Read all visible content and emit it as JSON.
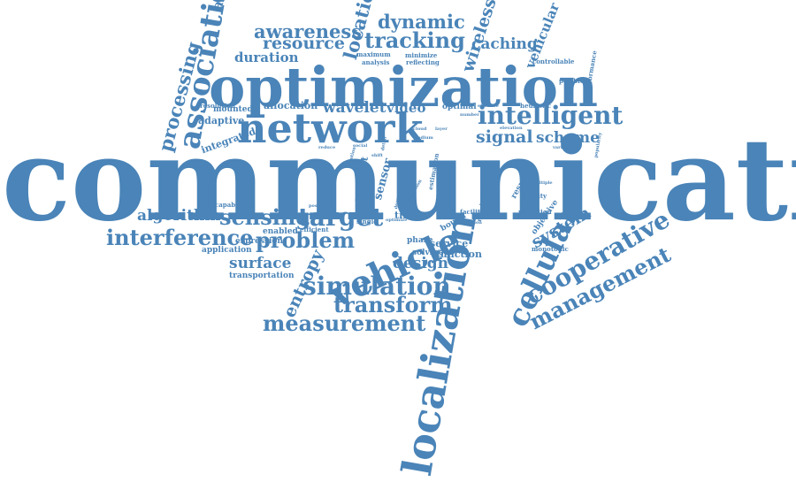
{
  "accent_color": "#4a84b8",
  "words": {
    "communication": "communication",
    "optimization": "optimization",
    "localization": "localization",
    "network": "network",
    "vehicle": "vehicle",
    "intelligent": "intelligent",
    "association": "association",
    "cellular": "cellular",
    "simulation": "simulation",
    "measurement": "measurement",
    "transform": "transform",
    "cooperative": "cooperative",
    "management": "management",
    "target": "target",
    "interference": "interference",
    "sensing": "sensing",
    "problem": "problem",
    "tracking": "tracking",
    "awareness": "awareness",
    "resource": "resource",
    "dynamic": "dynamic",
    "location": "location",
    "wireless": "wireless",
    "caching": "caching",
    "vehicular": "vehicular",
    "processing": "processing",
    "signal": "signal",
    "scheme": "scheme",
    "system": "system",
    "algorithm": "algorithm",
    "surface": "surface",
    "design": "design",
    "entropy": "entropy",
    "wavelet": "wavelet",
    "video": "video",
    "duration": "duration",
    "sensor": "sensor",
    "segment": "segment",
    "time": "time",
    "service": "service",
    "function": "function",
    "solving": "solving",
    "phase": "phase",
    "bound": "bound",
    "application": "application",
    "expression": "expression",
    "enabled": "enabled",
    "efficient": "efficient",
    "transportation": "transportation",
    "capabilities": "capabilities",
    "position": "position",
    "action": "action",
    "single": "single",
    "adaptive": "adaptive",
    "integrated": "integrated",
    "mounted": "mounted",
    "resolution": "resolution",
    "allocation": "allocation",
    "optimal": "optimal",
    "effective": "effective",
    "heuristic": "heuristic",
    "polyblock": "polyblock",
    "performance": "performance",
    "controllable": "controllable",
    "maximum": "maximum",
    "minimize": "minimize",
    "analysis": "analysis",
    "reflecting": "reflecting",
    "elevation": "elevation",
    "cloud": "cloud",
    "number": "number",
    "variable": "variable",
    "popularity": "popularity",
    "requirement": "requirement",
    "estimation": "estimation",
    "result": "result",
    "velocity": "velocity",
    "multiple": "multiple",
    "objective": "objective",
    "reflection": "reflection",
    "monotonic": "monotonic",
    "facilitate": "facilitate",
    "solution": "solution",
    "reduce": "reduce",
    "social": "social",
    "motion": "motion",
    "shift": "shift",
    "detail": "detail",
    "degree": "degree",
    "transmission": "transmission",
    "optimize": "optimize",
    "medium": "medium",
    "layer": "layer"
  }
}
